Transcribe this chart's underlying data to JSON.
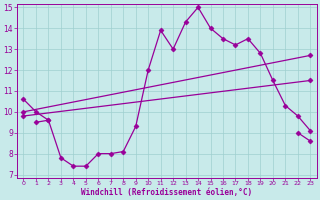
{
  "title": "",
  "xlabel": "Windchill (Refroidissement éolien,°C)",
  "ylabel": "",
  "bg_color": "#c8eaea",
  "line_color": "#990099",
  "grid_color": "#9fcfcf",
  "ylim": [
    7,
    15
  ],
  "xlim": [
    0,
    23
  ],
  "yticks": [
    7,
    8,
    9,
    10,
    11,
    12,
    13,
    14,
    15
  ],
  "xticks": [
    0,
    1,
    2,
    3,
    4,
    5,
    6,
    7,
    8,
    9,
    10,
    11,
    12,
    13,
    14,
    15,
    16,
    17,
    18,
    19,
    20,
    21,
    22,
    23
  ],
  "jagged_x": [
    0,
    1,
    2,
    3,
    4,
    5,
    6,
    7,
    8,
    9,
    10,
    11,
    12,
    13,
    14,
    15,
    16,
    17,
    18,
    19,
    20,
    21,
    22,
    23
  ],
  "jagged_y": [
    10.6,
    10.0,
    9.6,
    7.8,
    7.4,
    7.4,
    8.0,
    8.0,
    8.1,
    9.3,
    12.0,
    13.9,
    13.0,
    14.3,
    15.0,
    14.0,
    13.5,
    13.2,
    13.5,
    12.8,
    11.5,
    10.3,
    9.8,
    9.1
  ],
  "trend1_x": [
    0,
    23
  ],
  "trend1_y": [
    10.0,
    12.7
  ],
  "trend2_x": [
    0,
    23
  ],
  "trend2_y": [
    9.8,
    11.5
  ],
  "bottom_x": [
    0,
    1,
    2,
    3,
    4,
    5,
    6,
    7,
    8,
    9,
    10,
    11,
    12,
    13,
    14,
    15,
    16,
    17,
    18,
    19,
    20,
    21,
    22,
    23
  ],
  "bottom_y": [
    null,
    9.5,
    9.6,
    null,
    null,
    null,
    null,
    null,
    null,
    null,
    null,
    null,
    null,
    null,
    null,
    null,
    null,
    null,
    null,
    null,
    null,
    null,
    9.0,
    8.6
  ],
  "marker": "D",
  "markersize": 2.5,
  "linewidth": 0.9
}
